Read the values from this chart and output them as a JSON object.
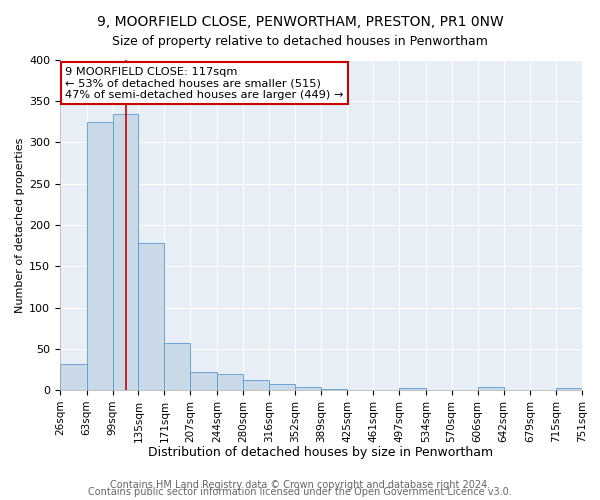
{
  "title": "9, MOORFIELD CLOSE, PENWORTHAM, PRESTON, PR1 0NW",
  "subtitle": "Size of property relative to detached houses in Penwortham",
  "xlabel": "Distribution of detached houses by size in Penwortham",
  "ylabel": "Number of detached properties",
  "bin_edges": [
    26,
    63,
    99,
    135,
    171,
    207,
    244,
    280,
    316,
    352,
    389,
    425,
    461,
    497,
    534,
    570,
    606,
    642,
    679,
    715,
    751
  ],
  "bar_heights": [
    32,
    325,
    335,
    178,
    57,
    22,
    20,
    12,
    7,
    4,
    1,
    0,
    0,
    3,
    0,
    0,
    4,
    0,
    0,
    3
  ],
  "bar_color": "#c9d9e8",
  "bar_edgecolor": "#5b9bd5",
  "property_line_x": 117,
  "property_line_color": "#cc0000",
  "annotation_title": "9 MOORFIELD CLOSE: 117sqm",
  "annotation_line1": "← 53% of detached houses are smaller (515)",
  "annotation_line2": "47% of semi-detached houses are larger (449) →",
  "annotation_box_edgecolor": "#cc0000",
  "ylim": [
    0,
    400
  ],
  "yticks": [
    0,
    50,
    100,
    150,
    200,
    250,
    300,
    350,
    400
  ],
  "tick_labels": [
    "26sqm",
    "63sqm",
    "99sqm",
    "135sqm",
    "171sqm",
    "207sqm",
    "244sqm",
    "280sqm",
    "316sqm",
    "352sqm",
    "389sqm",
    "425sqm",
    "461sqm",
    "497sqm",
    "534sqm",
    "570sqm",
    "606sqm",
    "642sqm",
    "679sqm",
    "715sqm",
    "751sqm"
  ],
  "footer1": "Contains HM Land Registry data © Crown copyright and database right 2024.",
  "footer2": "Contains public sector information licensed under the Open Government Licence v3.0.",
  "background_color": "#ffffff",
  "plot_background": "#e8eef5",
  "title_fontsize": 10,
  "subtitle_fontsize": 9,
  "xlabel_fontsize": 9,
  "ylabel_fontsize": 8,
  "tick_fontsize": 7.5,
  "footer_fontsize": 7
}
